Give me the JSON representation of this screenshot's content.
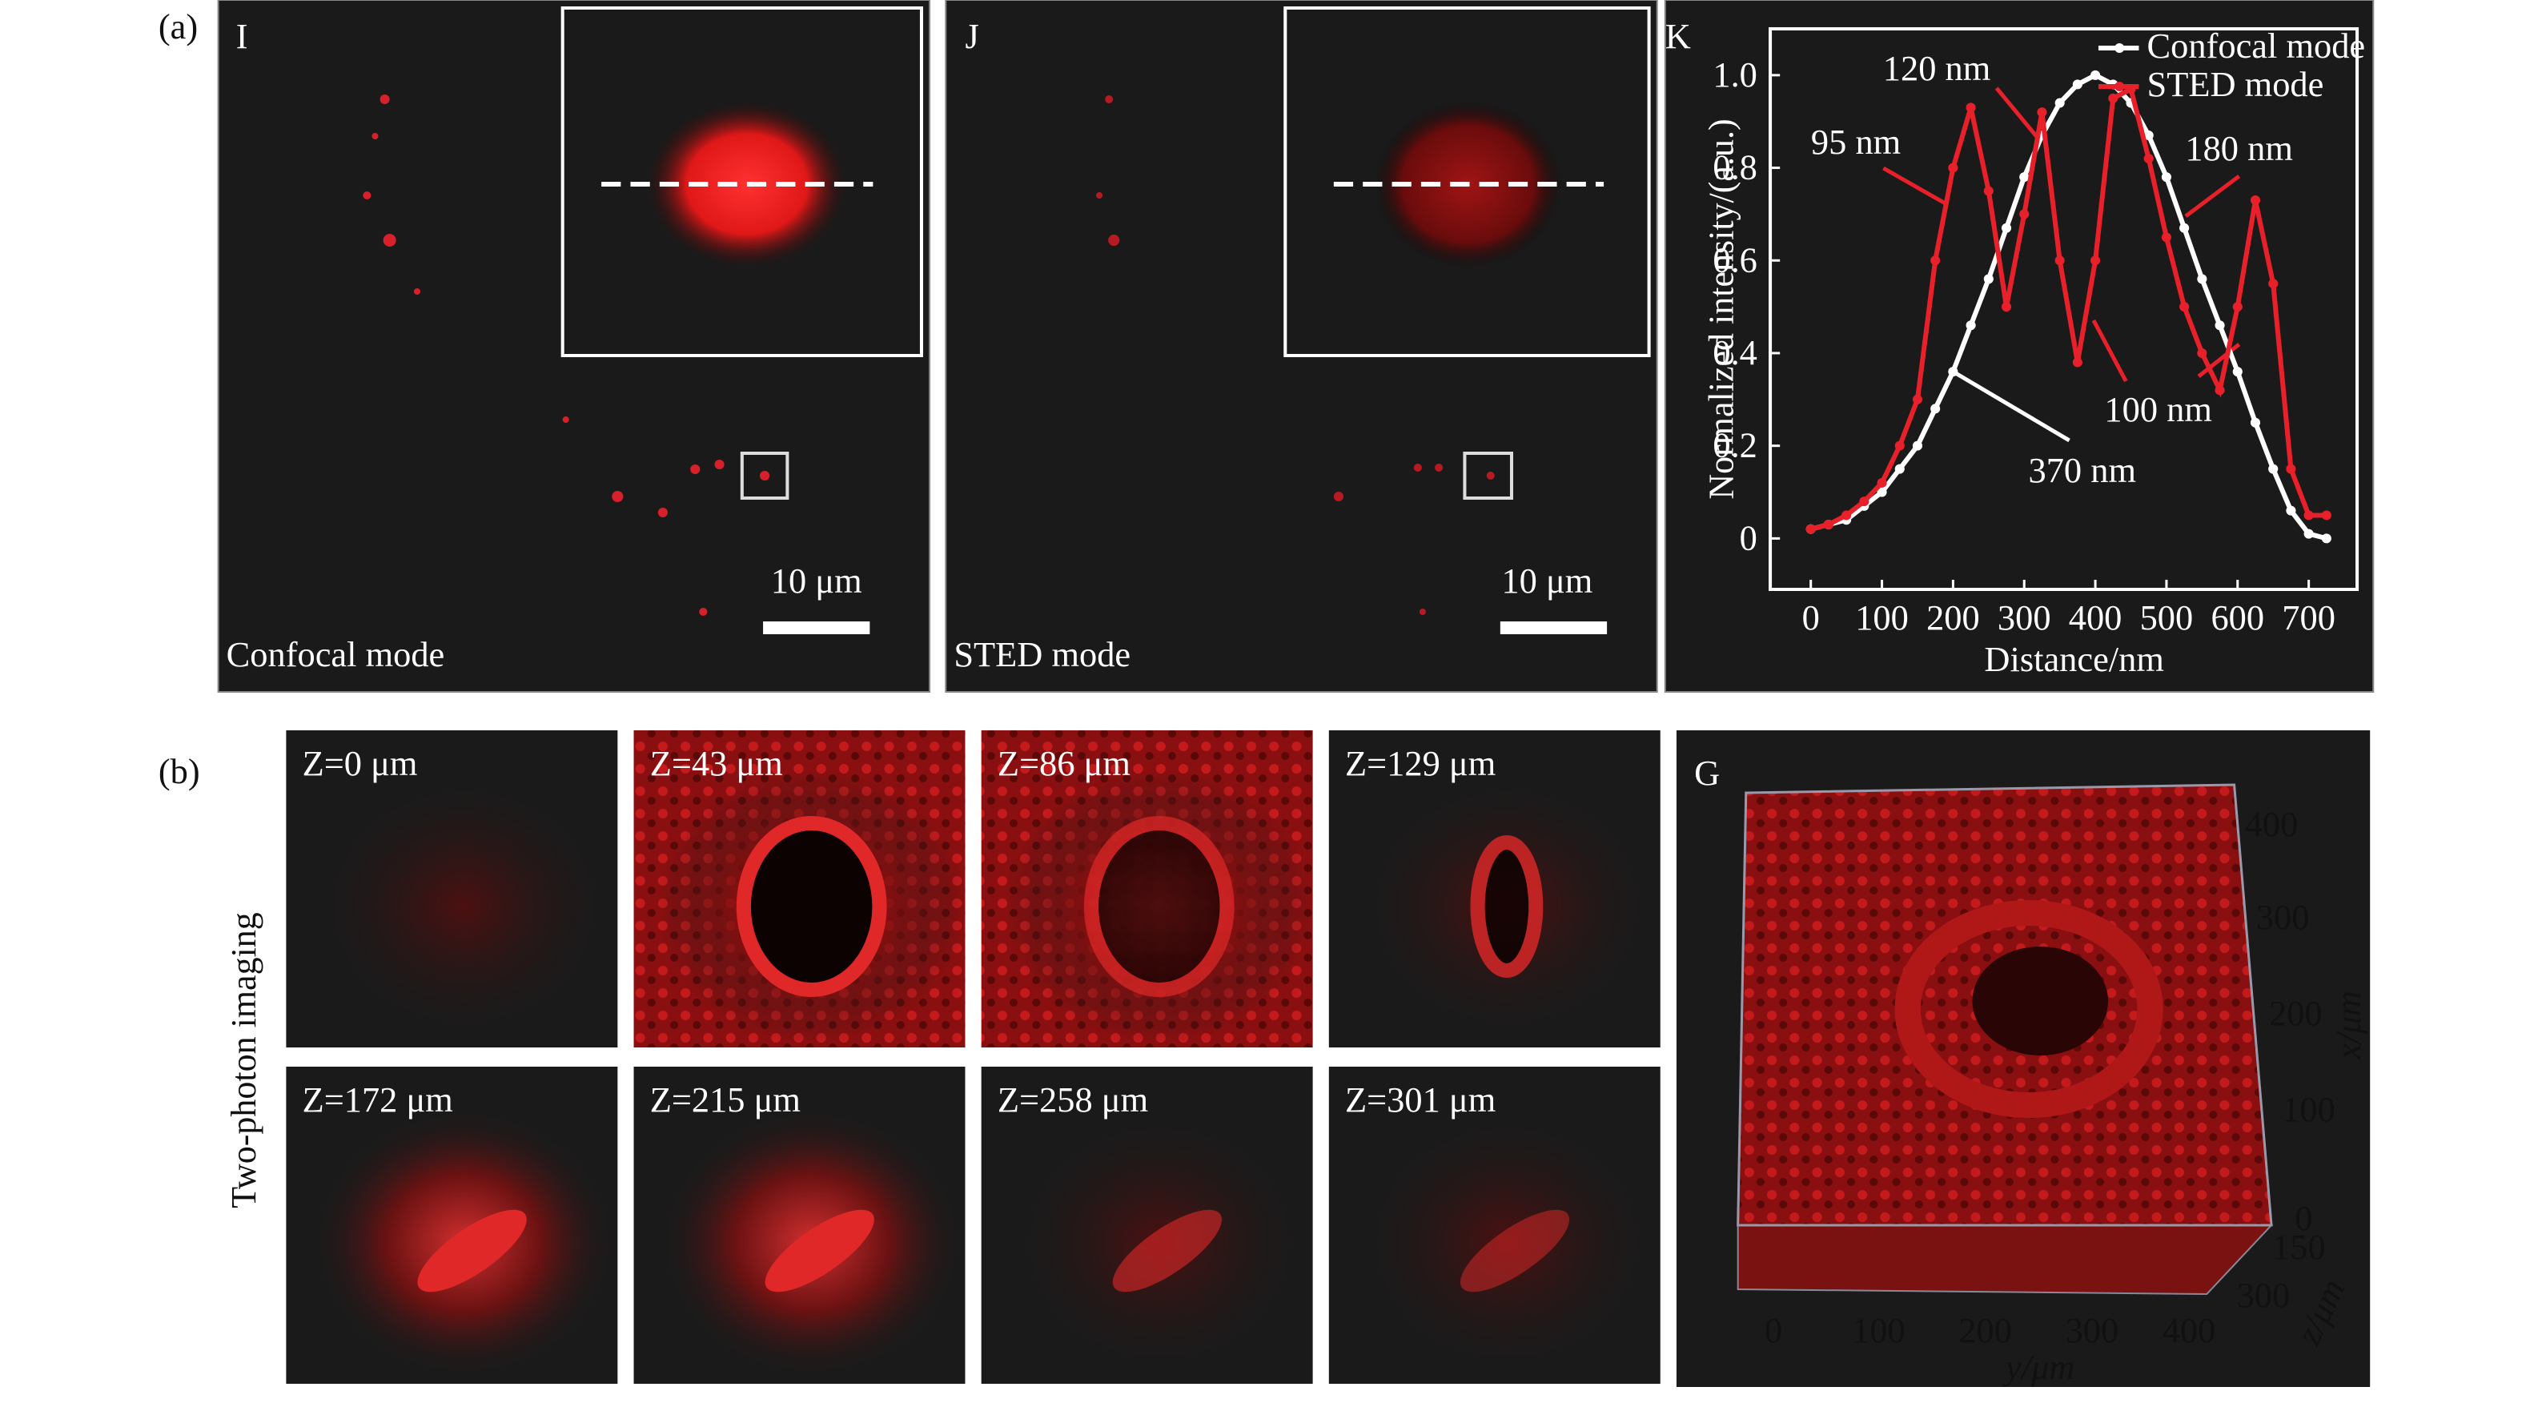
{
  "panel_labels": [
    "(a)",
    "(b)"
  ],
  "panels": {
    "I": {
      "label": "I",
      "caption": "Confocal mode",
      "scale_bar": "10 μm"
    },
    "J": {
      "label": "J",
      "caption": "STED mode",
      "scale_bar": "10 μm"
    },
    "K": {
      "label": "K"
    },
    "two_photon": {
      "title": "Two-photon imaging",
      "slices": [
        "Z=0 μm",
        "Z=43 μm",
        "Z=86 μm",
        "Z=129 μm",
        "Z=172 μm",
        "Z=215 μm",
        "Z=258 μm",
        "Z=301 μm"
      ]
    },
    "G": {
      "label": "G",
      "y_axis_label": "y/μm",
      "x_axis_label": "x/μm",
      "z_axis_label": "z/μm",
      "y_ticks": [
        0,
        100,
        200,
        300,
        400
      ],
      "x_ticks": [
        400,
        300,
        200,
        100,
        0
      ],
      "z_ticks": [
        150,
        300
      ]
    }
  },
  "chart_data": {
    "type": "line",
    "x": [
      0,
      25,
      50,
      75,
      100,
      125,
      150,
      175,
      200,
      225,
      250,
      275,
      300,
      325,
      350,
      375,
      400,
      425,
      450,
      475,
      500,
      525,
      550,
      575,
      600,
      625,
      650,
      675,
      700,
      725
    ],
    "series": [
      {
        "name": "Confocal mode",
        "color": "#ffffff",
        "values": [
          0.02,
          0.03,
          0.04,
          0.07,
          0.1,
          0.15,
          0.2,
          0.28,
          0.36,
          0.46,
          0.56,
          0.67,
          0.78,
          0.87,
          0.94,
          0.98,
          1.0,
          0.98,
          0.94,
          0.87,
          0.78,
          0.67,
          0.56,
          0.46,
          0.36,
          0.25,
          0.15,
          0.06,
          0.01,
          0.0
        ]
      },
      {
        "name": "STED mode",
        "color": "#e8202a",
        "values": [
          0.02,
          0.03,
          0.05,
          0.08,
          0.12,
          0.2,
          0.3,
          0.6,
          0.8,
          0.93,
          0.75,
          0.5,
          0.7,
          0.92,
          0.6,
          0.38,
          0.6,
          0.95,
          0.97,
          0.82,
          0.65,
          0.5,
          0.4,
          0.32,
          0.5,
          0.73,
          0.55,
          0.15,
          0.05,
          0.05
        ]
      }
    ],
    "xlim": [
      -57,
      768
    ],
    "ylim": [
      -0.11,
      1.1
    ],
    "xticks": [
      0,
      100,
      200,
      300,
      400,
      500,
      600,
      700
    ],
    "yticks": [
      0,
      0.2,
      0.4,
      0.6,
      0.8,
      {
        "value": 1,
        "label": "1.0"
      }
    ],
    "xlabel": "Distance/nm",
    "ylabel": "Normalized intensity/(a.u.)",
    "legend": "upper right",
    "markers": true,
    "annotations": [
      "120 nm",
      "95 nm",
      "180 nm",
      "100 nm",
      "370 nm"
    ]
  }
}
